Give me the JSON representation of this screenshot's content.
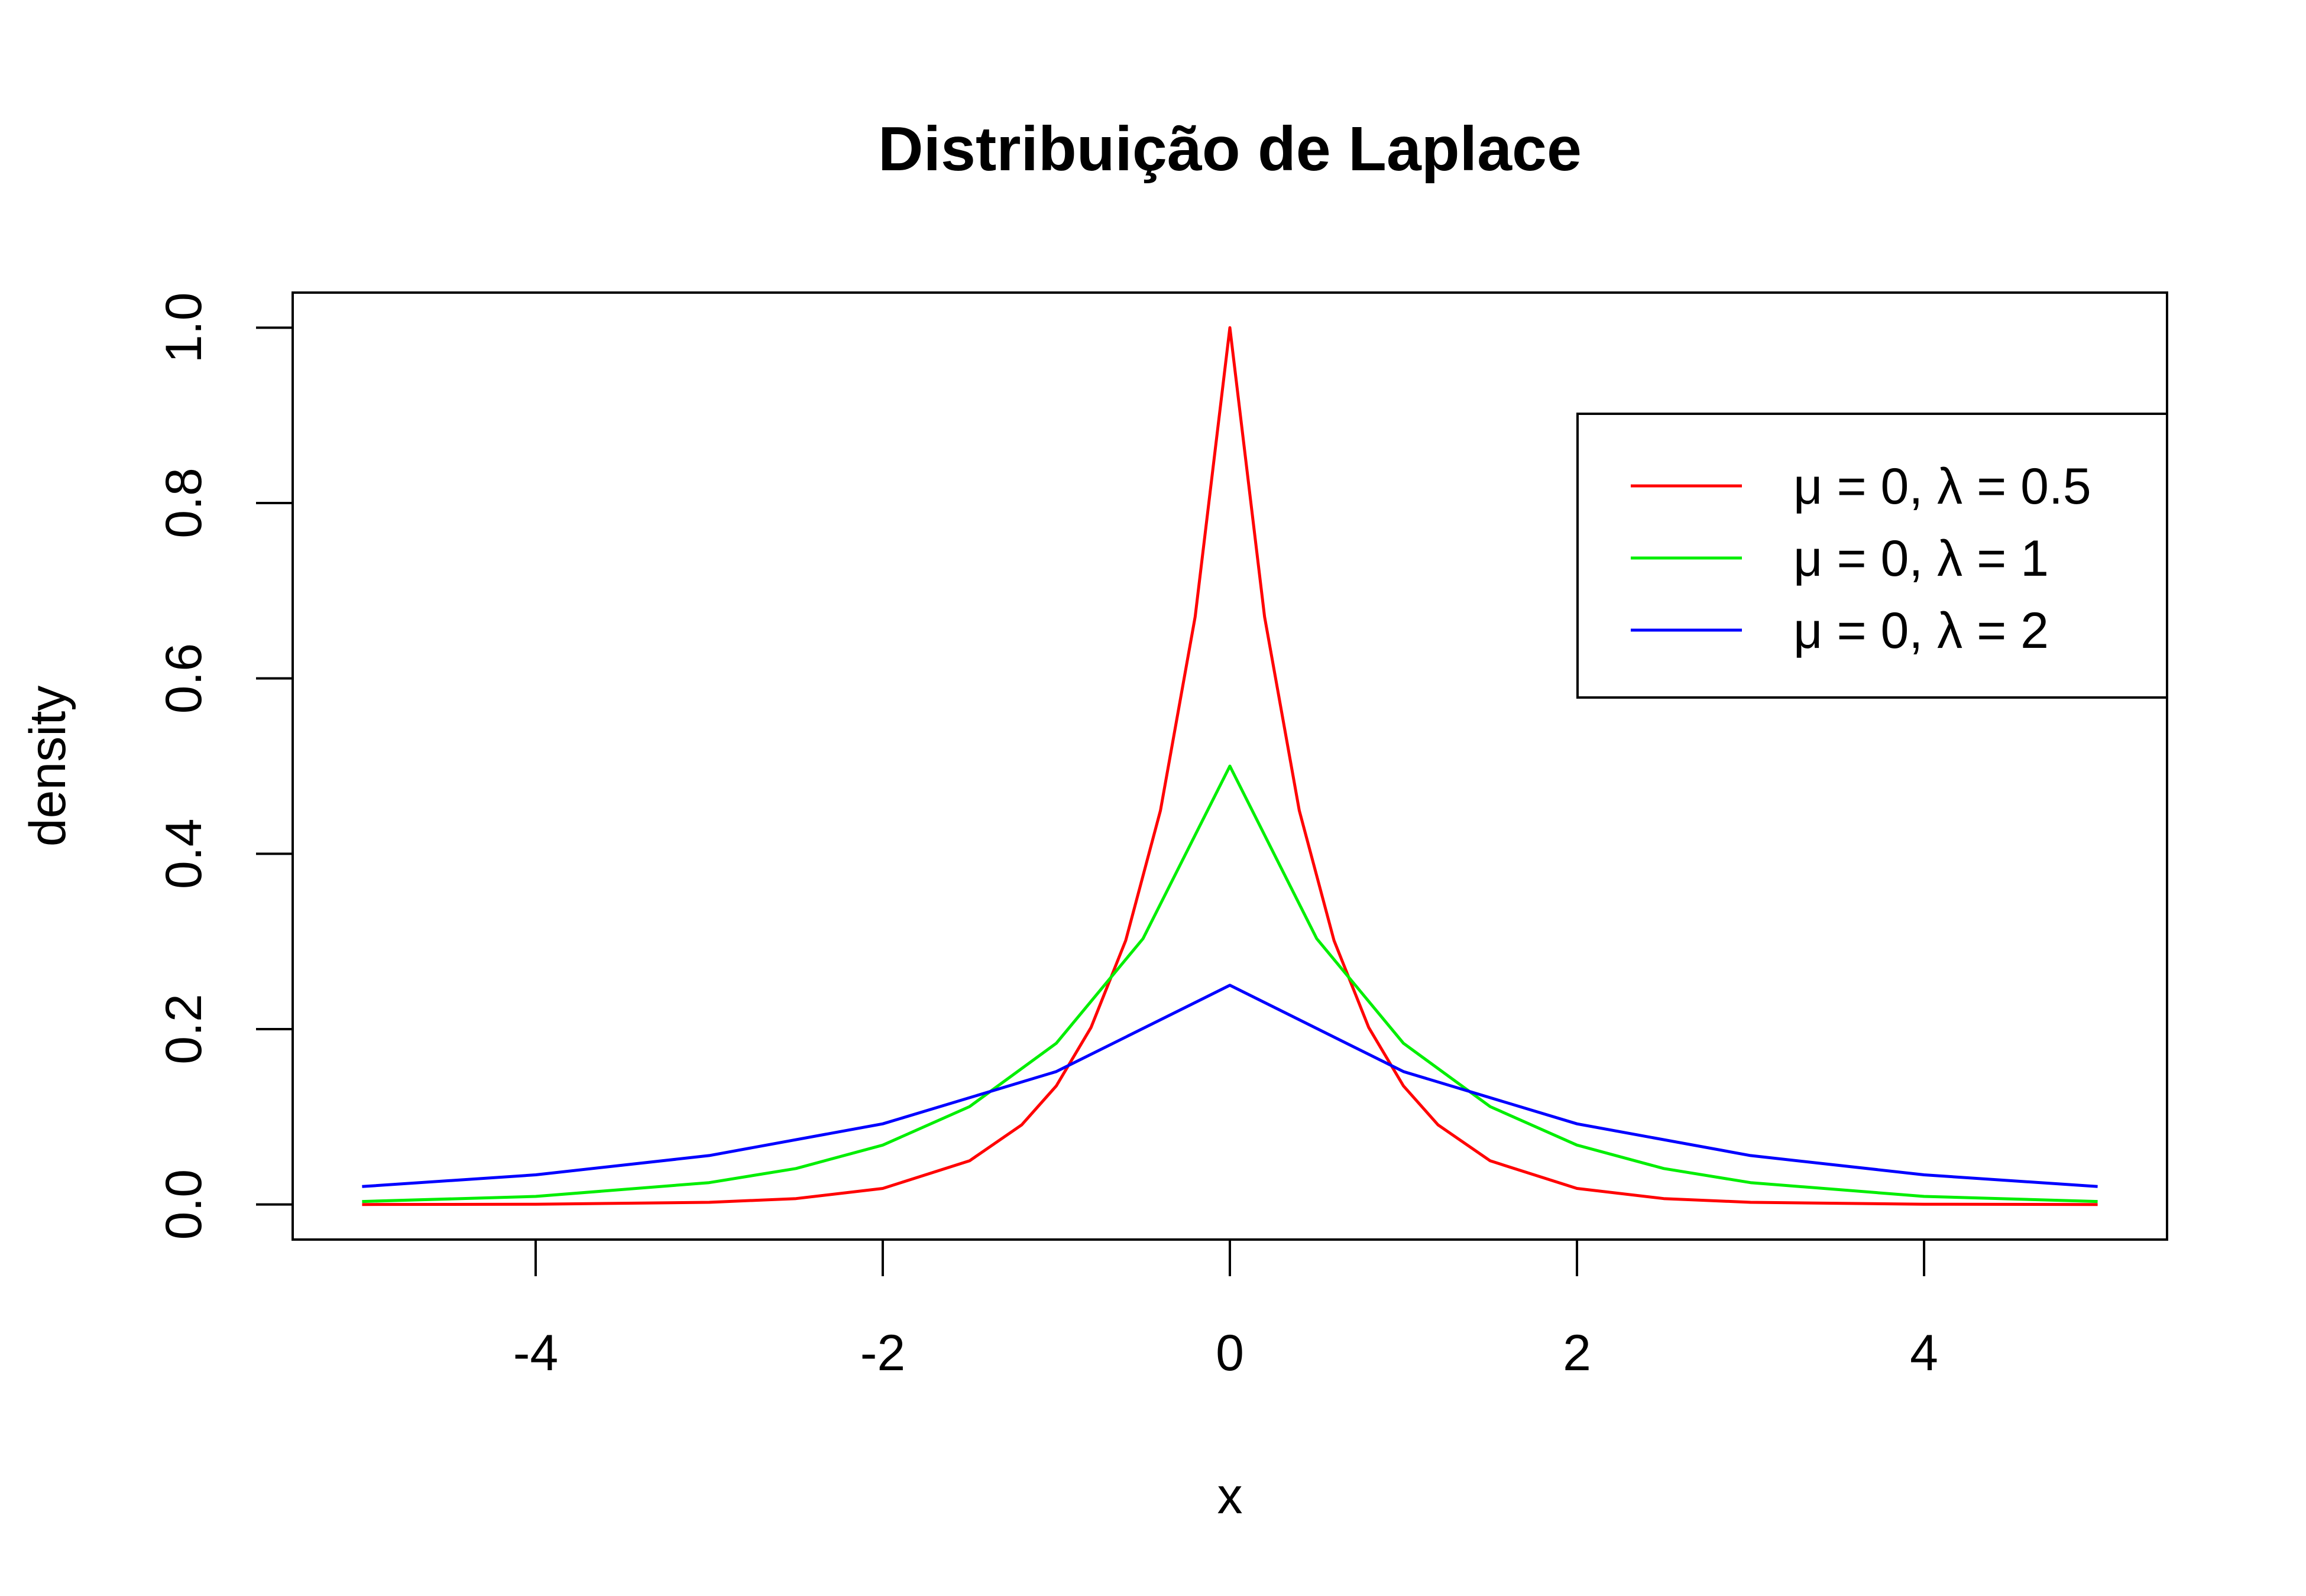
{
  "chart_data": {
    "type": "line",
    "title": "Distribuição de Laplace",
    "xlabel": "x",
    "ylabel": "density",
    "xlim": [
      -5.4,
      5.4
    ],
    "ylim": [
      -0.04,
      1.04
    ],
    "x_ticks": [
      -4,
      -2,
      0,
      2,
      4
    ],
    "x_tick_labels": [
      "-4",
      "-2",
      "0",
      "2",
      "4"
    ],
    "y_ticks": [
      0.0,
      0.2,
      0.4,
      0.6,
      0.8,
      1.0
    ],
    "y_tick_labels": [
      "0.0",
      "0.2",
      "0.4",
      "0.6",
      "0.8",
      "1.0"
    ],
    "x_range": [
      -5,
      5
    ],
    "grid": false,
    "legend_position": "top-right",
    "series": [
      {
        "name": "μ = 0, λ = 0.5",
        "color": "#ff0000",
        "x": [
          -5,
          -4,
          -3,
          -2.5,
          -2,
          -1.5,
          -1.2,
          -1,
          -0.8,
          -0.6,
          -0.4,
          -0.2,
          0,
          0.2,
          0.4,
          0.6,
          0.8,
          1,
          1.2,
          1.5,
          2,
          2.5,
          3,
          4,
          5
        ],
        "y": [
          0.0,
          0.0003,
          0.0025,
          0.0067,
          0.0183,
          0.0498,
          0.0907,
          0.1353,
          0.2019,
          0.3012,
          0.4493,
          0.6703,
          1.0,
          0.6703,
          0.4493,
          0.3012,
          0.2019,
          0.1353,
          0.0907,
          0.0498,
          0.0183,
          0.0067,
          0.0025,
          0.0003,
          0.0
        ]
      },
      {
        "name": "μ = 0, λ = 1",
        "color": "#00ee00",
        "x": [
          -5,
          -4,
          -3,
          -2.5,
          -2,
          -1.5,
          -1,
          -0.5,
          0,
          0.5,
          1,
          1.5,
          2,
          2.5,
          3,
          4,
          5
        ],
        "y": [
          0.0034,
          0.0092,
          0.0249,
          0.041,
          0.0677,
          0.1116,
          0.1839,
          0.3033,
          0.5,
          0.3033,
          0.1839,
          0.1116,
          0.0677,
          0.041,
          0.0249,
          0.0092,
          0.0034
        ]
      },
      {
        "name": "μ = 0, λ = 2",
        "color": "#0000ff",
        "x": [
          -5,
          -4,
          -3,
          -2,
          -1,
          0,
          1,
          2,
          3,
          4,
          5
        ],
        "y": [
          0.0205,
          0.0338,
          0.0558,
          0.092,
          0.1516,
          0.25,
          0.1516,
          0.092,
          0.0558,
          0.0338,
          0.0205
        ]
      }
    ]
  }
}
